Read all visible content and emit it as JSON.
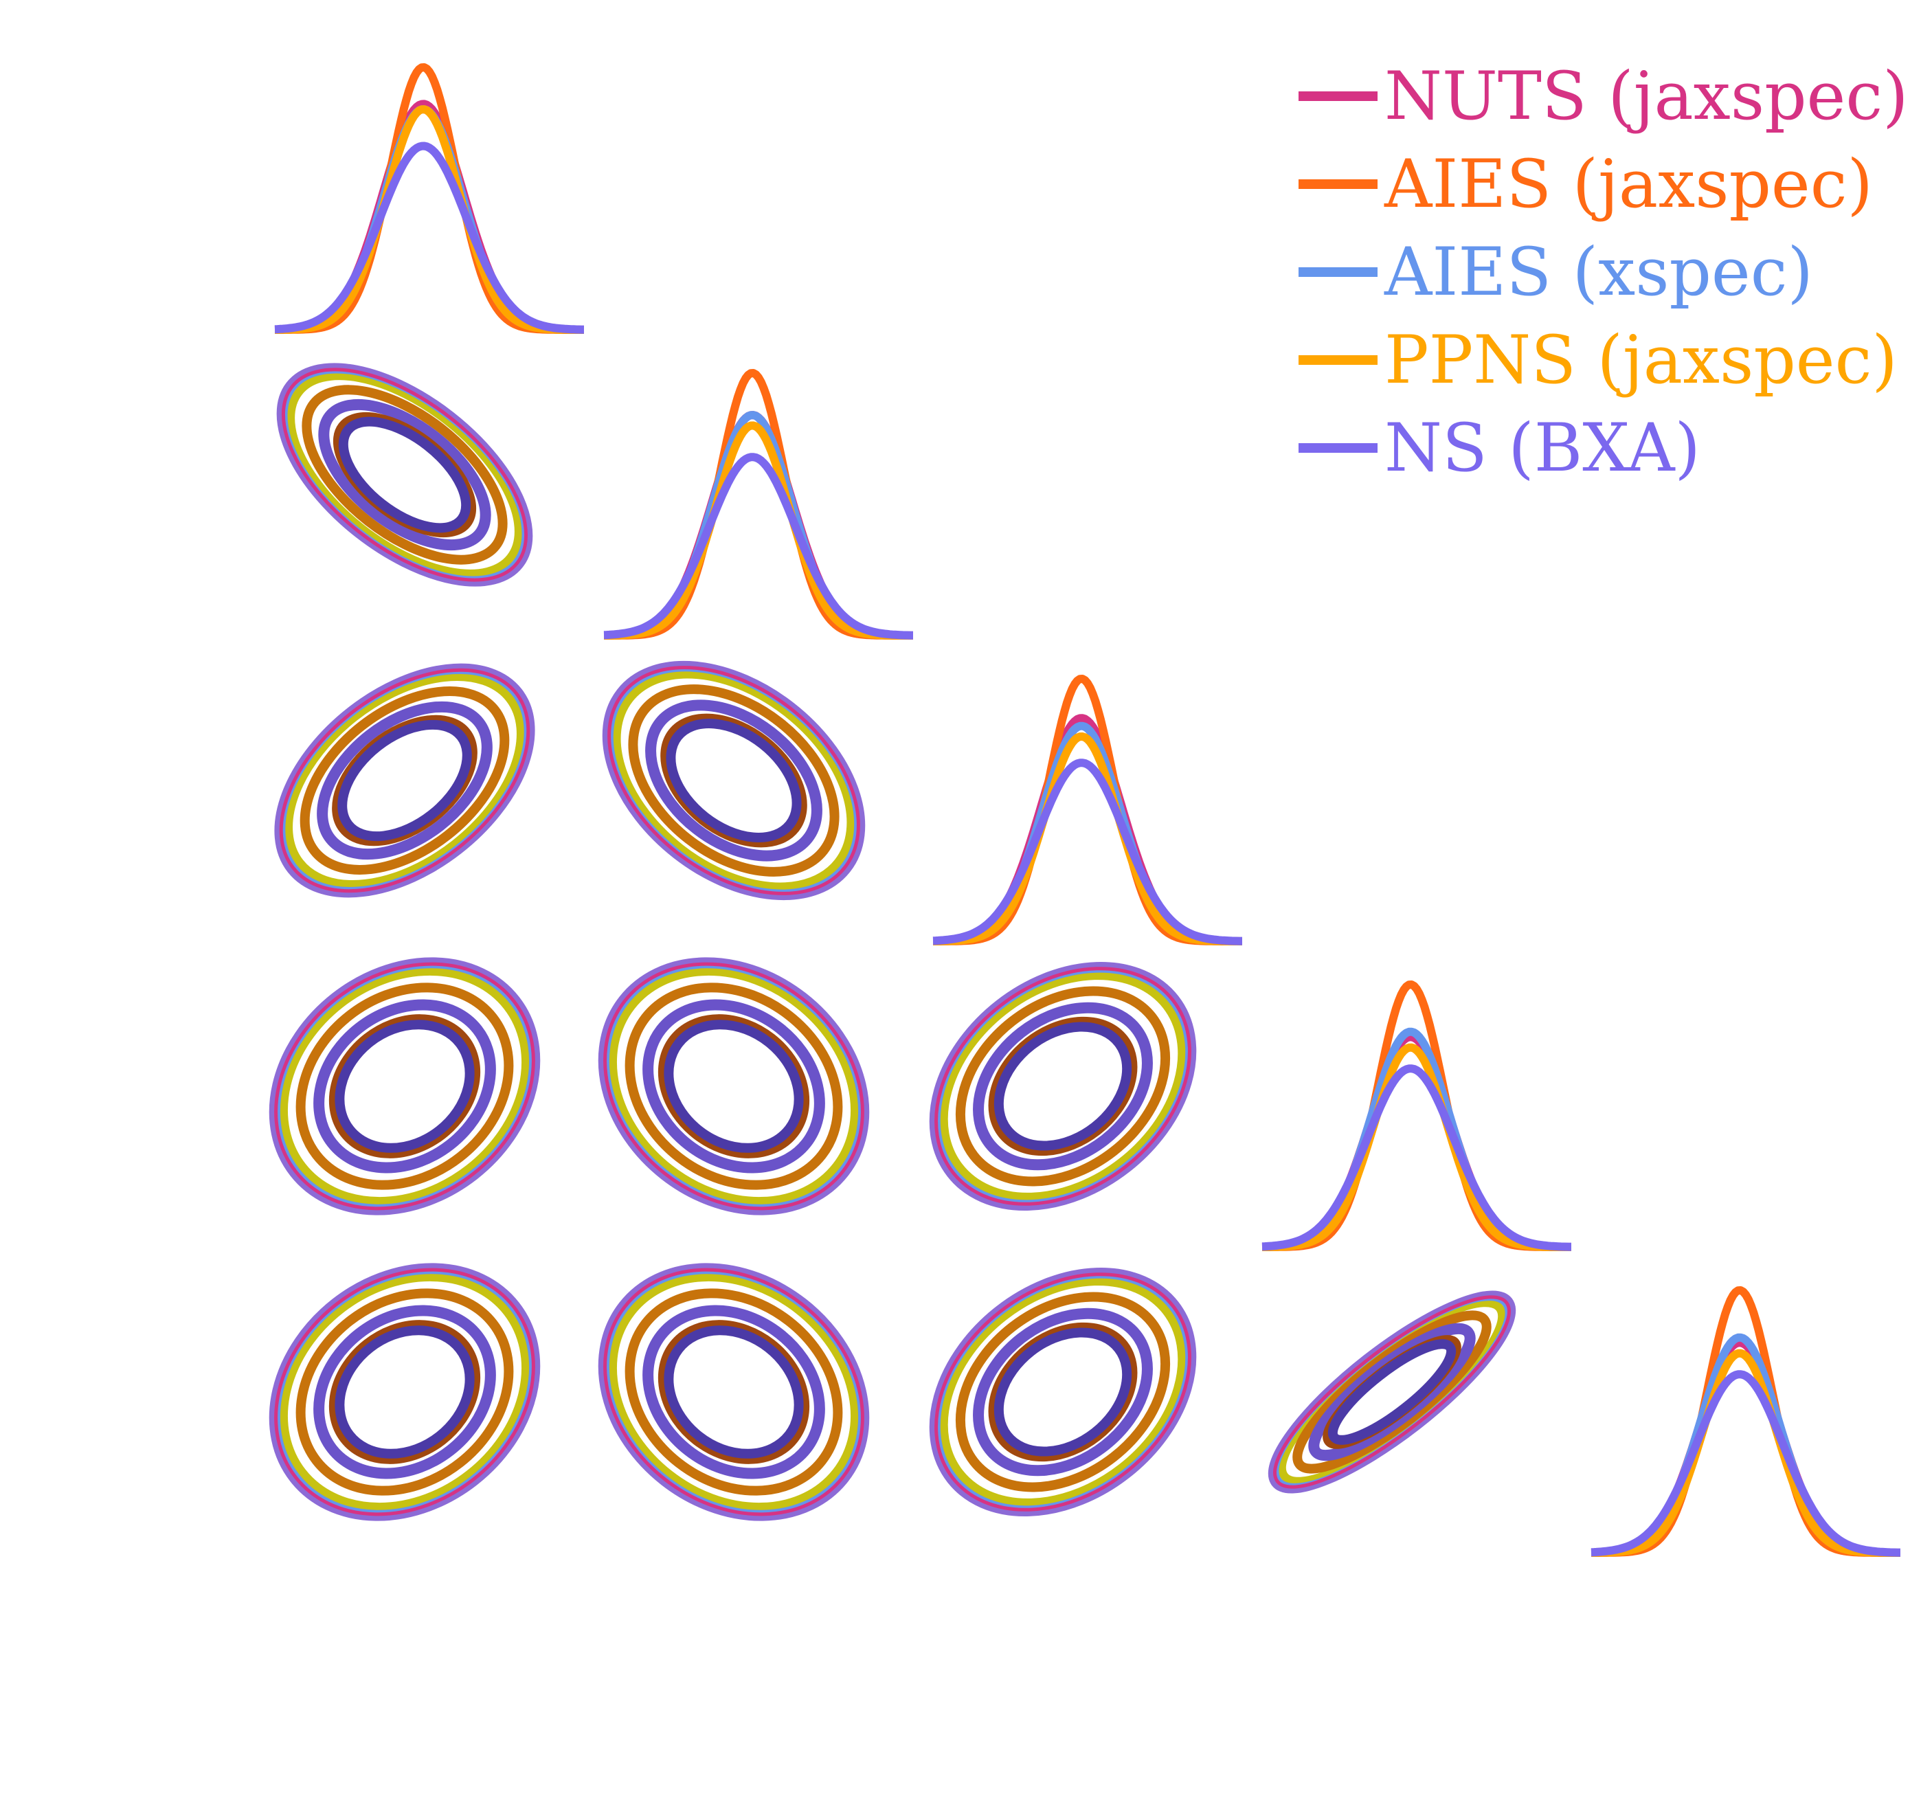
{
  "chart_data": {
    "type": "corner",
    "n_parameters": 5,
    "title": "",
    "axis_labels": [],
    "tick_labels": [],
    "grid": false,
    "legend_position": "top-right",
    "series": [
      {
        "name": "NUTS (jaxspec)",
        "color": "#d63384",
        "peak_height": [
          0.86,
          0.84,
          0.85,
          0.8,
          0.8
        ],
        "width": [
          1.0,
          1.0,
          1.0,
          1.0,
          1.0
        ],
        "mean_shift": [
          0.0,
          0.0,
          0.0,
          0.0,
          0.0
        ]
      },
      {
        "name": "AIES (jaxspec)",
        "color": "#ff6a13",
        "peak_height": [
          1.0,
          1.0,
          1.0,
          1.0,
          1.0
        ],
        "width": [
          0.82,
          0.82,
          0.82,
          0.82,
          0.82
        ],
        "mean_shift": [
          0.0,
          0.0,
          0.0,
          0.0,
          0.0
        ]
      },
      {
        "name": "AIES (xspec)",
        "color": "#6495ed",
        "peak_height": [
          0.84,
          0.84,
          0.82,
          0.82,
          0.82
        ],
        "width": [
          0.98,
          0.98,
          0.98,
          0.98,
          0.98
        ],
        "mean_shift": [
          0.0,
          0.0,
          0.0,
          0.0,
          0.0
        ]
      },
      {
        "name": "PPNS (jaxspec)",
        "color": "#ffa500",
        "peak_height": [
          0.84,
          0.8,
          0.78,
          0.76,
          0.76
        ],
        "width": [
          0.92,
          0.92,
          0.92,
          0.92,
          0.92
        ],
        "mean_shift": [
          0.0,
          0.0,
          0.0,
          0.0,
          0.0
        ]
      },
      {
        "name": "NS (BXA)",
        "color": "#7b68ee",
        "peak_height": [
          0.7,
          0.68,
          0.68,
          0.68,
          0.68
        ],
        "width": [
          1.08,
          1.08,
          1.08,
          1.08,
          1.08
        ],
        "mean_shift": [
          0.0,
          0.0,
          0.0,
          0.0,
          0.0
        ]
      }
    ],
    "contour_levels": [
      0.39,
      0.86
    ],
    "pair_correlations": [
      {
        "row": 1,
        "col": 0,
        "rho": -0.95
      },
      {
        "row": 2,
        "col": 0,
        "rho": 0.93
      },
      {
        "row": 2,
        "col": 1,
        "rho": -0.92
      },
      {
        "row": 3,
        "col": 0,
        "rho": 0.88
      },
      {
        "row": 3,
        "col": 1,
        "rho": -0.88
      },
      {
        "row": 3,
        "col": 2,
        "rho": 0.9
      },
      {
        "row": 4,
        "col": 0,
        "rho": 0.88
      },
      {
        "row": 4,
        "col": 1,
        "rho": -0.88
      },
      {
        "row": 4,
        "col": 2,
        "rho": 0.9
      },
      {
        "row": 4,
        "col": 3,
        "rho": 0.985
      }
    ]
  }
}
